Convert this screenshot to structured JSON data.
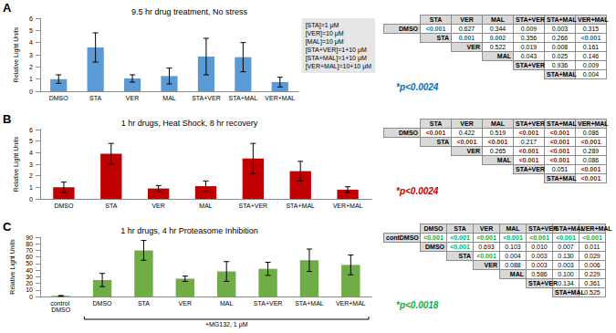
{
  "chart_data": [
    {
      "panel": "A",
      "type": "bar",
      "title": "9.5 hr drug treatment, No stress",
      "y_label": "Relative Light Units",
      "categories": [
        "DMSO",
        "STA",
        "VER",
        "MAL",
        "STA+VER",
        "STA+MAL",
        "VER+MAL"
      ],
      "values": [
        1.0,
        3.6,
        1.05,
        1.25,
        2.85,
        2.8,
        0.75
      ],
      "errors": [
        0.35,
        1.2,
        0.3,
        0.65,
        1.5,
        1.2,
        0.4
      ],
      "color": "#5b9bd5",
      "ylim": [
        0,
        6
      ],
      "yticks": [
        0,
        1,
        2,
        3,
        4,
        5,
        6
      ],
      "grid": false,
      "annotations": [
        "[STA]=1 μM",
        "[VER]=10 μM",
        "[MAL]=10 μM",
        "[STA+VER]=1+10 μM",
        "[STA+MAL]=1+10 μM",
        "[VER+MAL]=10+10 μM"
      ]
    },
    {
      "panel": "B",
      "type": "bar",
      "title": "1 hr drugs, Heat Shock, 8 hr recovery",
      "y_label": "Relative Light Units",
      "categories": [
        "DMSO",
        "STA",
        "VER",
        "MAL",
        "STA+VER",
        "STA+MAL",
        "VER+MAL"
      ],
      "values": [
        1.0,
        3.9,
        0.9,
        1.1,
        3.5,
        2.4,
        0.8
      ],
      "errors": [
        0.45,
        0.9,
        0.25,
        0.45,
        1.3,
        0.85,
        0.25
      ],
      "color": "#c00000",
      "ylim": [
        0,
        6
      ],
      "yticks": [
        0,
        1,
        2,
        3,
        4,
        5,
        6
      ],
      "grid": false
    },
    {
      "panel": "C",
      "type": "bar",
      "title": "1 hr drugs, 4 hr Proteasome Inhibition",
      "y_label": "Relative Light Units",
      "categories": [
        "control DMSO",
        "DMSO",
        "STA",
        "VER",
        "MAL",
        "STA+VER",
        "STA+MAL",
        "VER+MAL"
      ],
      "values": [
        1,
        25,
        70,
        27,
        38,
        42,
        55,
        48
      ],
      "errors": [
        0.5,
        10,
        15,
        4,
        15,
        10,
        17,
        15
      ],
      "color": "#70ad47",
      "ylim": [
        0,
        90
      ],
      "yticks": [
        0,
        10,
        20,
        30,
        40,
        50,
        60,
        70,
        80,
        90
      ],
      "grid": false,
      "group_label": "+MG132, 1 μM"
    }
  ],
  "tables": [
    {
      "panel": "A",
      "color": "#0070c0",
      "note": "*p<0.0024",
      "header": [
        "STA",
        "VER",
        "MAL",
        "STA+VER",
        "STA+MAL",
        "VER+MAL"
      ],
      "rows": [
        {
          "label": "DMSO",
          "cells": [
            "<0.001",
            "0.627",
            "0.344",
            "0.009",
            "0.003",
            "0.315"
          ],
          "significant": [
            true,
            false,
            false,
            false,
            false,
            false
          ]
        },
        {
          "label": "STA",
          "cells": [
            "0.001",
            "0.002",
            "0.356",
            "0.266",
            "<0.001"
          ],
          "significant": [
            true,
            true,
            false,
            false,
            true
          ]
        },
        {
          "label": "VER",
          "cells": [
            "0.522",
            "0.019",
            "0.008",
            "0.161"
          ],
          "significant": [
            false,
            false,
            false,
            false
          ]
        },
        {
          "label": "MAL",
          "cells": [
            "0.043",
            "0.025",
            "0.146"
          ],
          "significant": [
            false,
            false,
            false
          ]
        },
        {
          "label": "STA+VER",
          "cells": [
            "0.936",
            "0.009"
          ],
          "significant": [
            false,
            false
          ]
        },
        {
          "label": "STA+MAL",
          "cells": [
            "0.004"
          ],
          "significant": [
            false
          ]
        }
      ]
    },
    {
      "panel": "B",
      "color": "#c00000",
      "note": "*p<0.0024",
      "header": [
        "STA",
        "VER",
        "MAL",
        "STA+VER",
        "STA+MAL",
        "VER+MAL"
      ],
      "rows": [
        {
          "label": "DMSO",
          "cells": [
            "<0.001",
            "0.422",
            "0.519",
            "<0.001",
            "<0.001",
            "0.086"
          ],
          "significant": [
            true,
            false,
            false,
            true,
            true,
            false
          ]
        },
        {
          "label": "STA",
          "cells": [
            "<0.001",
            "<0.001",
            "0.217",
            "<0.001",
            "<0.001"
          ],
          "significant": [
            true,
            true,
            false,
            true,
            true
          ]
        },
        {
          "label": "VER",
          "cells": [
            "0.265",
            "<0.001",
            "<0.001",
            "0.289"
          ],
          "significant": [
            false,
            true,
            true,
            false
          ]
        },
        {
          "label": "MAL",
          "cells": [
            "<0.001",
            "<0.001",
            "0.086"
          ],
          "significant": [
            true,
            true,
            false
          ]
        },
        {
          "label": "STA+VER",
          "cells": [
            "0.051",
            "<0.001"
          ],
          "significant": [
            false,
            true
          ]
        },
        {
          "label": "STA+MAL",
          "cells": [
            "<0.001"
          ],
          "significant": [
            true
          ]
        }
      ]
    },
    {
      "panel": "C",
      "color": "#00b050",
      "note": "*p<0.0018",
      "header": [
        "DMSO",
        "STA",
        "VER",
        "MAL",
        "STA+VER",
        "STA+MAL",
        "VER+MAL"
      ],
      "rows": [
        {
          "label": "contDMSO",
          "cells": [
            "<0.001",
            "<0.001",
            "<0.001",
            "<0.001",
            "<0.001",
            "<0.001",
            "<0.001"
          ],
          "significant": [
            true,
            true,
            true,
            true,
            true,
            true,
            true
          ]
        },
        {
          "label": "DMSO",
          "cells": [
            "<0.001",
            "0.693",
            "0.103",
            "0.010",
            "0.007",
            "0.011"
          ],
          "significant": [
            true,
            false,
            false,
            false,
            false,
            false
          ]
        },
        {
          "label": "STA",
          "cells": [
            "<0.001",
            "0.004",
            "0.003",
            "0.130",
            "0.029"
          ],
          "significant": [
            true,
            false,
            false,
            false,
            false
          ]
        },
        {
          "label": "VER",
          "cells": [
            "0.088",
            "0.003",
            "0.003",
            "0.006"
          ],
          "significant": [
            false,
            false,
            false,
            false
          ]
        },
        {
          "label": "MAL",
          "cells": [
            "0.586",
            "0.100",
            "0.229"
          ],
          "significant": [
            false,
            false,
            false
          ]
        },
        {
          "label": "STA+VER",
          "cells": [
            "0.134",
            "0.361"
          ],
          "significant": [
            false,
            false
          ]
        },
        {
          "label": "STA+MAL",
          "cells": [
            "0.525"
          ],
          "significant": [
            false
          ]
        }
      ]
    }
  ]
}
